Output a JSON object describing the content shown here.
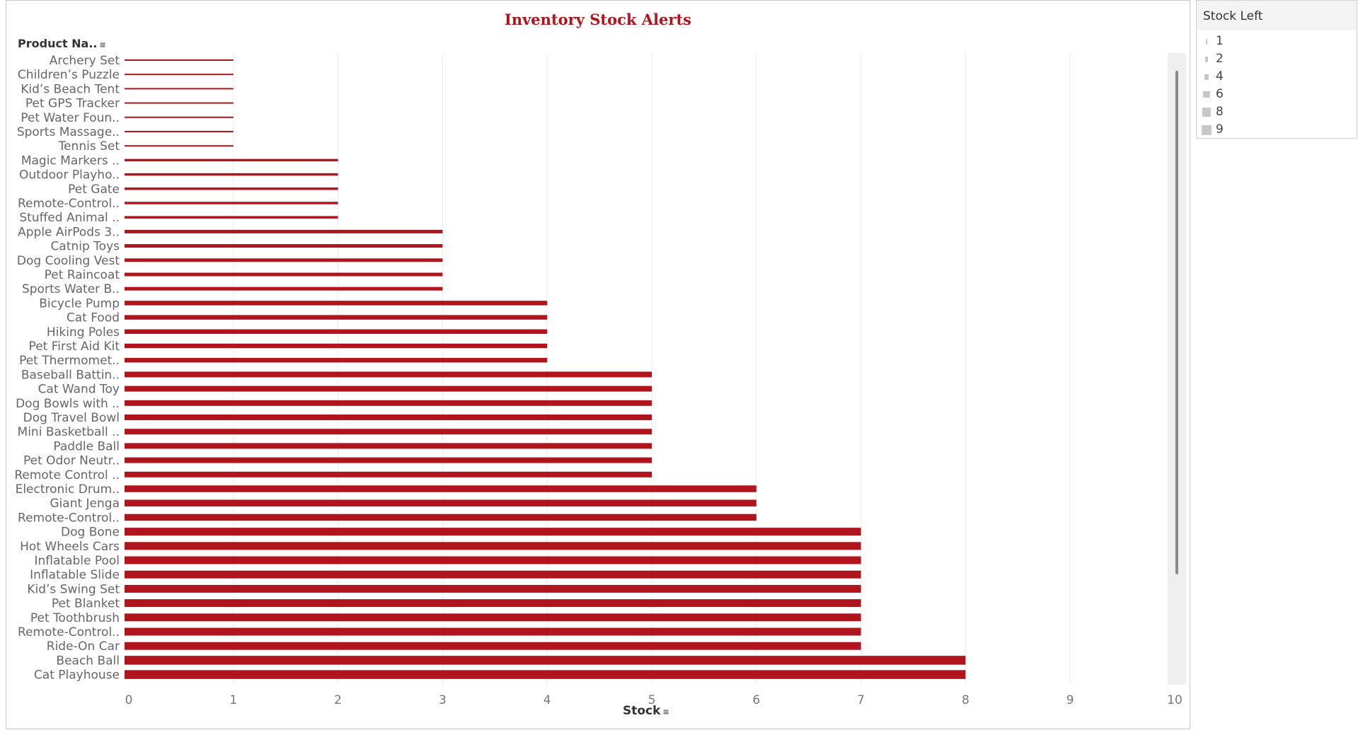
{
  "chart_data": {
    "type": "bar",
    "orientation": "horizontal",
    "title": "Inventory Stock Alerts",
    "row_header": "Product Na..",
    "xlabel": "Stock",
    "xlim": [
      0,
      10
    ],
    "x_ticks": [
      0,
      1,
      2,
      3,
      4,
      5,
      6,
      7,
      8,
      9,
      10
    ],
    "bar_color": "#b0141c",
    "grid": true,
    "categories": [
      "Archery Set",
      "Children’s Puzzle",
      "Kid’s Beach Tent",
      "Pet GPS Tracker",
      "Pet Water Foun..",
      "Sports Massage..",
      "Tennis Set",
      "Magic Markers ..",
      "Outdoor Playho..",
      "Pet Gate",
      "Remote-Control..",
      "Stuffed Animal ..",
      "Apple AirPods 3..",
      "Catnip Toys",
      "Dog Cooling Vest",
      "Pet Raincoat",
      "Sports Water B..",
      "Bicycle Pump",
      "Cat Food",
      "Hiking Poles",
      "Pet First Aid Kit",
      "Pet Thermomet..",
      "Baseball Battin..",
      "Cat Wand Toy",
      "Dog Bowls with ..",
      "Dog Travel Bowl",
      "Mini Basketball ..",
      "Paddle Ball",
      "Pet Odor Neutr..",
      "Remote Control ..",
      "Electronic Drum..",
      "Giant Jenga",
      "Remote-Control..",
      "Dog Bone",
      "Hot Wheels Cars",
      "Inflatable Pool",
      "Inflatable Slide",
      "Kid’s Swing Set",
      "Pet Blanket",
      "Pet Toothbrush",
      "Remote-Control..",
      "Ride-On Car",
      "Beach Ball",
      "Cat Playhouse"
    ],
    "values": [
      1,
      1,
      1,
      1,
      1,
      1,
      1,
      2,
      2,
      2,
      2,
      2,
      3,
      3,
      3,
      3,
      3,
      4,
      4,
      4,
      4,
      4,
      5,
      5,
      5,
      5,
      5,
      5,
      5,
      5,
      6,
      6,
      6,
      7,
      7,
      7,
      7,
      7,
      7,
      7,
      7,
      7,
      8,
      8
    ]
  },
  "legend": {
    "title": "Stock Left",
    "items": [
      "1",
      "2",
      "4",
      "6",
      "8",
      "9"
    ]
  }
}
